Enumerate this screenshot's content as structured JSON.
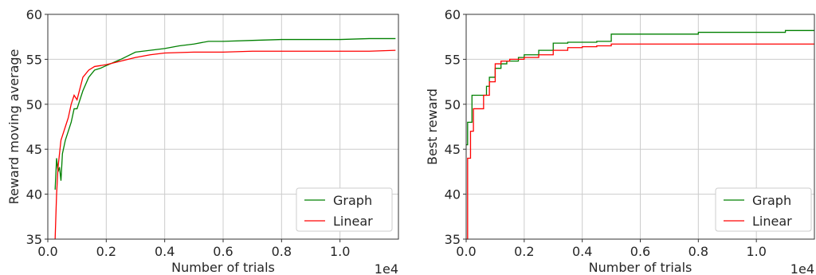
{
  "chart_data": [
    {
      "type": "line",
      "ylabel": "Reward moving average",
      "xlabel": "Number of trials",
      "x_offset_label": "1e4",
      "xlim": [
        0.0,
        1.2
      ],
      "ylim": [
        35,
        60
      ],
      "xticks": [
        0.0,
        0.2,
        0.4,
        0.6,
        0.8,
        1.0
      ],
      "xtick_labels": [
        "0.0",
        "0.2",
        "0.4",
        "0.6",
        "0.8",
        "1.0"
      ],
      "yticks": [
        35,
        40,
        45,
        50,
        55,
        60
      ],
      "ytick_labels": [
        "35",
        "40",
        "45",
        "50",
        "55",
        "60"
      ],
      "grid": true,
      "legend_position": "bottom-right",
      "series": [
        {
          "name": "Graph",
          "color": "#008000",
          "x": [
            0.025,
            0.03,
            0.035,
            0.04,
            0.045,
            0.05,
            0.06,
            0.07,
            0.08,
            0.09,
            0.1,
            0.12,
            0.14,
            0.16,
            0.18,
            0.2,
            0.25,
            0.3,
            0.35,
            0.4,
            0.45,
            0.5,
            0.55,
            0.6,
            0.7,
            0.8,
            0.9,
            1.0,
            1.1,
            1.19
          ],
          "y": [
            40.5,
            44.0,
            42.5,
            43.0,
            41.5,
            44.5,
            46.0,
            47.0,
            48.0,
            49.5,
            49.5,
            51.5,
            53.0,
            53.8,
            54.0,
            54.3,
            55.0,
            55.8,
            56.0,
            56.2,
            56.5,
            56.7,
            57.0,
            57.0,
            57.1,
            57.2,
            57.2,
            57.2,
            57.3,
            57.3
          ]
        },
        {
          "name": "Linear",
          "color": "#ff0000",
          "x": [
            0.025,
            0.03,
            0.035,
            0.04,
            0.045,
            0.05,
            0.06,
            0.07,
            0.08,
            0.09,
            0.1,
            0.12,
            0.14,
            0.16,
            0.18,
            0.2,
            0.25,
            0.3,
            0.35,
            0.4,
            0.5,
            0.6,
            0.7,
            0.8,
            0.9,
            1.0,
            1.1,
            1.19
          ],
          "y": [
            35.0,
            40.0,
            43.0,
            44.5,
            46.0,
            46.5,
            47.5,
            48.5,
            50.0,
            51.0,
            50.5,
            53.0,
            53.8,
            54.2,
            54.3,
            54.4,
            54.8,
            55.2,
            55.5,
            55.7,
            55.8,
            55.8,
            55.9,
            55.9,
            55.9,
            55.9,
            55.9,
            56.0
          ]
        }
      ]
    },
    {
      "type": "line",
      "ylabel": "Best reward",
      "xlabel": "Number of trials",
      "x_offset_label": "1e4",
      "xlim": [
        0.0,
        1.2
      ],
      "ylim": [
        35,
        60
      ],
      "xticks": [
        0.0,
        0.2,
        0.4,
        0.6,
        0.8,
        1.0
      ],
      "xtick_labels": [
        "0.0",
        "0.2",
        "0.4",
        "0.6",
        "0.8",
        "1.0"
      ],
      "yticks": [
        35,
        40,
        45,
        50,
        55,
        60
      ],
      "ytick_labels": [
        "35",
        "40",
        "45",
        "50",
        "55",
        "60"
      ],
      "grid": true,
      "legend_position": "bottom-right",
      "series": [
        {
          "name": "Graph",
          "color": "#008000",
          "step": true,
          "x": [
            0.0,
            0.005,
            0.02,
            0.05,
            0.07,
            0.08,
            0.1,
            0.12,
            0.14,
            0.18,
            0.2,
            0.25,
            0.3,
            0.35,
            0.45,
            0.5,
            0.55,
            0.8,
            1.0,
            1.1,
            1.2
          ],
          "y": [
            45.5,
            48.0,
            51.0,
            51.0,
            52.0,
            53.0,
            54.0,
            54.5,
            54.8,
            55.2,
            55.5,
            56.0,
            56.8,
            56.9,
            57.0,
            57.8,
            57.8,
            58.0,
            58.0,
            58.2,
            58.2
          ]
        },
        {
          "name": "Linear",
          "color": "#ff0000",
          "step": true,
          "x": [
            0.0,
            0.005,
            0.015,
            0.025,
            0.04,
            0.06,
            0.08,
            0.1,
            0.12,
            0.15,
            0.2,
            0.25,
            0.3,
            0.35,
            0.4,
            0.45,
            0.5,
            0.6,
            1.0,
            1.2
          ],
          "y": [
            35.0,
            44.0,
            47.0,
            49.5,
            49.5,
            51.0,
            52.5,
            54.5,
            54.8,
            55.0,
            55.2,
            55.5,
            56.0,
            56.3,
            56.4,
            56.5,
            56.7,
            56.7,
            56.7,
            56.7
          ]
        }
      ]
    }
  ]
}
